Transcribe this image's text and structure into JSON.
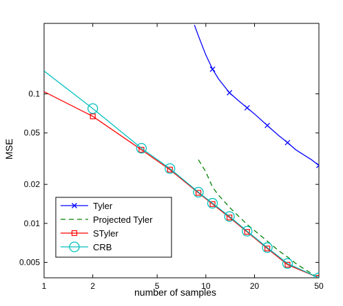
{
  "chart_data": {
    "type": "line",
    "xlabel": "number of samples",
    "ylabel": "MSE",
    "xscale": "log",
    "yscale": "log",
    "xlim": [
      1,
      50
    ],
    "ylim": [
      0.0038,
      0.35
    ],
    "xticks": [
      1,
      2,
      5,
      10,
      20,
      50
    ],
    "xtick_labels": [
      "1",
      "2",
      "5",
      "10",
      "20",
      "50"
    ],
    "yticks": [
      0.005,
      0.01,
      0.02,
      0.05,
      0.1
    ],
    "ytick_labels": [
      "0.005",
      "0.01",
      "0.02",
      "0.05",
      "0.1"
    ],
    "grid": false,
    "legend_position": "lower-left",
    "series": [
      {
        "name": "Tyler",
        "color": "#0000ff",
        "dash": "solid",
        "marker": "x",
        "line_x": [
          8.5,
          9,
          10,
          11,
          12,
          14,
          16,
          18,
          20,
          24,
          28,
          32,
          36,
          40,
          45,
          50
        ],
        "line_y": [
          0.34,
          0.28,
          0.2,
          0.155,
          0.13,
          0.102,
          0.088,
          0.078,
          0.07,
          0.057,
          0.048,
          0.042,
          0.037,
          0.034,
          0.031,
          0.028
        ],
        "marker_x": [
          11,
          14,
          18,
          24,
          32,
          50
        ],
        "marker_y": [
          0.155,
          0.102,
          0.078,
          0.057,
          0.042,
          0.028
        ]
      },
      {
        "name": "Projected Tyler",
        "color": "#008000",
        "dash": "dashed",
        "marker": "none",
        "line_x": [
          9,
          10,
          11,
          12,
          14,
          16,
          18,
          20,
          24,
          28,
          32,
          36,
          40,
          45,
          50
        ],
        "line_y": [
          0.031,
          0.025,
          0.019,
          0.0165,
          0.0133,
          0.0113,
          0.0098,
          0.0088,
          0.0073,
          0.0062,
          0.0055,
          0.0049,
          0.0045,
          0.0041,
          0.0038
        ],
        "marker_x": [],
        "marker_y": []
      },
      {
        "name": "STyler",
        "color": "#ff0000",
        "dash": "solid",
        "marker": "square",
        "line_x": [
          1,
          2,
          4,
          6,
          9,
          11,
          14,
          18,
          24,
          32,
          50
        ],
        "line_y": [
          0.104,
          0.067,
          0.037,
          0.026,
          0.0172,
          0.0141,
          0.0111,
          0.0086,
          0.0064,
          0.0048,
          0.0038
        ],
        "marker_x": [
          2,
          4,
          6,
          9,
          11,
          14,
          18,
          24,
          32,
          50
        ],
        "marker_y": [
          0.067,
          0.037,
          0.026,
          0.0172,
          0.0141,
          0.0111,
          0.0086,
          0.0064,
          0.0048,
          0.0038
        ]
      },
      {
        "name": "CRB",
        "color": "#00bfbf",
        "dash": "solid",
        "marker": "circle",
        "line_x": [
          1,
          2,
          4,
          6,
          9,
          11,
          14,
          18,
          24,
          32,
          50
        ],
        "line_y": [
          0.15,
          0.077,
          0.038,
          0.0265,
          0.0174,
          0.0143,
          0.0113,
          0.0087,
          0.0065,
          0.0049,
          0.0038
        ],
        "marker_x": [
          2,
          4,
          6,
          9,
          11,
          14,
          18,
          24,
          32,
          50
        ],
        "marker_y": [
          0.077,
          0.038,
          0.0265,
          0.0174,
          0.0143,
          0.0113,
          0.0087,
          0.0065,
          0.0049,
          0.0038
        ]
      }
    ]
  }
}
